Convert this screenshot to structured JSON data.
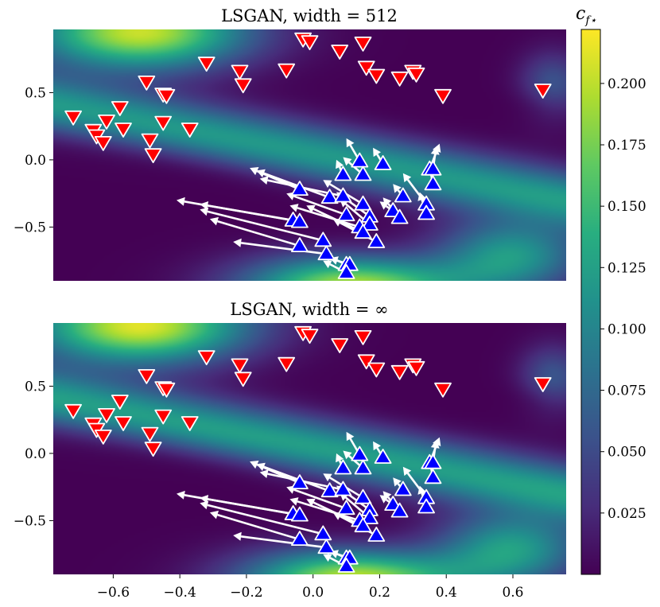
{
  "chart_data": {
    "type": "heatmap",
    "description_of_marks": "quiver plot over heatmap; red down-triangles = target points, blue up-triangles = generated points with white arrows",
    "panels": [
      {
        "title": "LSGAN, width = 512",
        "field_variant": 0
      },
      {
        "title": "LSGAN, width = ∞",
        "field_variant": 1
      }
    ],
    "xlim": [
      -0.78,
      0.76
    ],
    "ylim": [
      -0.9,
      0.97
    ],
    "xticks": [
      -0.6,
      -0.4,
      -0.2,
      0.0,
      0.2,
      0.4,
      0.6
    ],
    "xtick_labels": [
      "−0.6",
      "−0.4",
      "−0.2",
      "0.0",
      "0.2",
      "0.4",
      "0.6"
    ],
    "yticks": [
      0.5,
      0.0,
      -0.5
    ],
    "ytick_labels": [
      "0.5",
      "0.0",
      "−0.5"
    ],
    "colorbar": {
      "label_base": "c",
      "label_sub": "f⋆",
      "range": [
        0.0,
        0.222
      ],
      "ticks": [
        0.025,
        0.05,
        0.075,
        0.1,
        0.125,
        0.15,
        0.175,
        0.2
      ],
      "tick_labels": [
        "0.025",
        "0.050",
        "0.075",
        "0.100",
        "0.125",
        "0.150",
        "0.175",
        "0.200"
      ],
      "colormap": "viridis"
    },
    "red_points": [
      [
        -0.03,
        0.9
      ],
      [
        -0.01,
        0.88
      ],
      [
        0.15,
        0.87
      ],
      [
        0.08,
        0.81
      ],
      [
        -0.32,
        0.72
      ],
      [
        -0.22,
        0.66
      ],
      [
        -0.21,
        0.56
      ],
      [
        -0.08,
        0.67
      ],
      [
        0.16,
        0.69
      ],
      [
        0.19,
        0.63
      ],
      [
        0.26,
        0.61
      ],
      [
        0.3,
        0.66
      ],
      [
        0.31,
        0.64
      ],
      [
        0.39,
        0.48
      ],
      [
        0.69,
        0.52
      ],
      [
        -0.5,
        0.58
      ],
      [
        -0.45,
        0.49
      ],
      [
        -0.44,
        0.48
      ],
      [
        -0.58,
        0.39
      ],
      [
        -0.72,
        0.32
      ],
      [
        -0.62,
        0.29
      ],
      [
        -0.66,
        0.22
      ],
      [
        -0.65,
        0.18
      ],
      [
        -0.63,
        0.13
      ],
      [
        -0.57,
        0.23
      ],
      [
        -0.45,
        0.28
      ],
      [
        -0.37,
        0.23
      ],
      [
        -0.49,
        0.15
      ],
      [
        -0.48,
        0.04
      ]
    ],
    "blue_points": [
      [
        0.14,
        -0.01
      ],
      [
        0.21,
        -0.03
      ],
      [
        0.09,
        -0.11
      ],
      [
        0.15,
        -0.11
      ],
      [
        -0.04,
        -0.22
      ],
      [
        0.05,
        -0.28
      ],
      [
        0.09,
        -0.27
      ],
      [
        0.15,
        -0.33
      ],
      [
        0.27,
        -0.27
      ],
      [
        0.1,
        -0.41
      ],
      [
        0.17,
        -0.42
      ],
      [
        0.24,
        -0.38
      ],
      [
        0.26,
        -0.43
      ],
      [
        -0.06,
        -0.45
      ],
      [
        -0.04,
        -0.46
      ],
      [
        0.14,
        -0.5
      ],
      [
        0.17,
        -0.48
      ],
      [
        0.15,
        -0.54
      ],
      [
        0.03,
        -0.6
      ],
      [
        0.19,
        -0.61
      ],
      [
        -0.04,
        -0.64
      ],
      [
        0.04,
        -0.7
      ],
      [
        0.1,
        -0.78
      ],
      [
        0.11,
        -0.78
      ],
      [
        0.1,
        -0.84
      ],
      [
        0.35,
        -0.07
      ],
      [
        0.36,
        -0.07
      ],
      [
        0.36,
        -0.18
      ],
      [
        0.34,
        -0.33
      ],
      [
        0.34,
        -0.4
      ]
    ],
    "arrows_dx_dy": [
      [
        -0.04,
        0.17
      ],
      [
        -0.03,
        0.12
      ],
      [
        -0.02,
        0.11
      ],
      [
        -0.06,
        0.13
      ],
      [
        -0.15,
        0.16
      ],
      [
        -0.22,
        0.2
      ],
      [
        -0.25,
        0.13
      ],
      [
        -0.12,
        0.18
      ],
      [
        -0.03,
        0.09
      ],
      [
        -0.18,
        0.16
      ],
      [
        -0.1,
        0.18
      ],
      [
        -0.04,
        0.07
      ],
      [
        -0.05,
        0.15
      ],
      [
        -0.28,
        0.12
      ],
      [
        -0.37,
        0.16
      ],
      [
        -0.21,
        0.16
      ],
      [
        -0.09,
        0.19
      ],
      [
        -0.17,
        0.2
      ],
      [
        -0.37,
        0.23
      ],
      [
        -0.13,
        0.17
      ],
      [
        -0.27,
        0.2
      ],
      [
        -0.28,
        0.09
      ],
      [
        -0.07,
        0.08
      ],
      [
        -0.06,
        0.05
      ],
      [
        -0.07,
        0.09
      ],
      [
        0.03,
        0.19
      ],
      [
        0.01,
        0.17
      ],
      [
        -0.01,
        0.13
      ],
      [
        -0.07,
        0.23
      ],
      [
        -0.02,
        0.16
      ]
    ]
  }
}
